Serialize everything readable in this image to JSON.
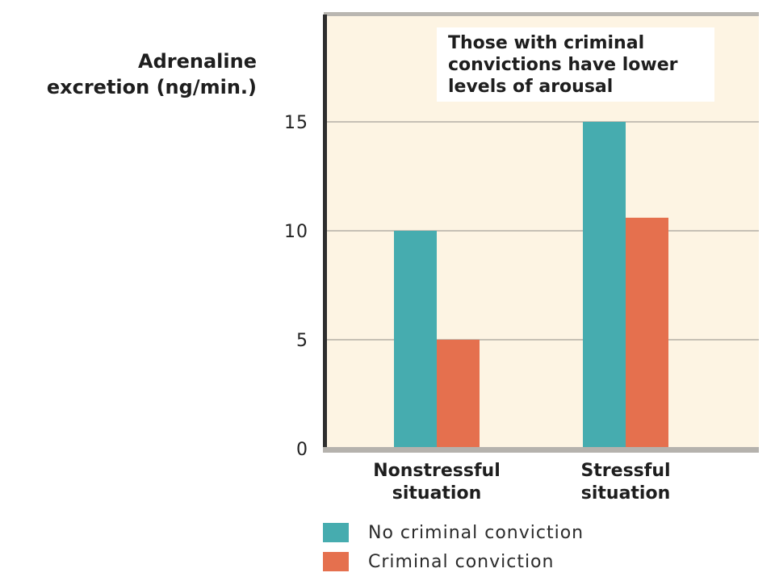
{
  "chart_data": {
    "type": "bar",
    "title": "",
    "ylabel": "Adrenaline excretion (ng/min.)",
    "ylabel_lines": [
      "Adrenaline",
      "excretion (ng/min.)"
    ],
    "xlabel": "",
    "ylim": [
      0,
      20
    ],
    "yticks": [
      0,
      5,
      10,
      15
    ],
    "grid": true,
    "legend_position": "bottom",
    "categories": [
      "Nonstressful situation",
      "Stressful situation"
    ],
    "category_lines": [
      [
        "Nonstressful",
        "situation"
      ],
      [
        "Stressful",
        "situation"
      ]
    ],
    "series": [
      {
        "name": "No criminal conviction",
        "values": [
          10,
          15
        ],
        "color": "#46acaf"
      },
      {
        "name": "Criminal conviction",
        "values": [
          5,
          10.6
        ],
        "color": "#e5704e"
      }
    ],
    "annotation": {
      "lines": [
        "Those with criminal",
        "convictions have lower",
        "levels of arousal"
      ]
    }
  }
}
